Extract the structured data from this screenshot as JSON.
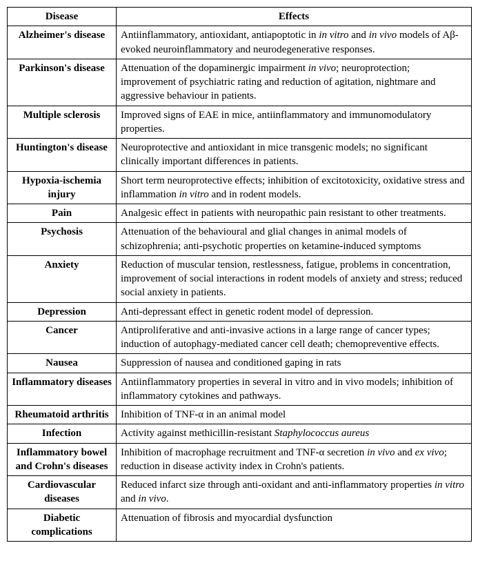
{
  "headers": {
    "disease": "Disease",
    "effects": "Effects"
  },
  "rows": [
    {
      "disease": "Alzheimer's disease",
      "effects_html": "Antiinflammatory, antioxidant, antiapoptotic in <span class=\"ital\">in vitro</span> and <span class=\"ital\">in vivo</span> models of Aβ-evoked neuroinflammatory and neurodegenerative responses."
    },
    {
      "disease": "Parkinson's disease",
      "effects_html": "Attenuation of the dopaminergic impairment <span class=\"ital\">in vivo</span>; neuroprotection; improvement of psychiatric rating and reduction of agitation, nightmare and aggressive behaviour in patients."
    },
    {
      "disease": "Multiple sclerosis",
      "effects_html": "Improved signs of EAE in mice, antiinflammatory and immunomodulatory properties."
    },
    {
      "disease": "Huntington's disease",
      "effects_html": "Neuroprotective and antioxidant in mice transgenic models; no significant clinically important differences in patients."
    },
    {
      "disease": "Hypoxia-ischemia injury",
      "effects_html": "Short term neuroprotective effects; inhibition of excitotoxicity, oxidative stress and inflammation <span class=\"ital\">in vitro</span> and in rodent models."
    },
    {
      "disease": "Pain",
      "effects_html": "Analgesic effect in patients with neuropathic pain resistant to other treatments."
    },
    {
      "disease": "Psychosis",
      "effects_html": "Attenuation of the behavioural and glial changes in animal models of schizophrenia; anti-psychotic properties on ketamine-induced symptoms"
    },
    {
      "disease": "Anxiety",
      "effects_html": "Reduction of muscular tension, restlessness, fatigue, problems in concentration, improvement of social interactions in rodent models of anxiety and stress; reduced social anxiety in patients."
    },
    {
      "disease": "Depression",
      "effects_html": "Anti-depressant effect in genetic rodent model of depression."
    },
    {
      "disease": "Cancer",
      "effects_html": "Antiproliferative and anti-invasive actions in a large range of cancer types; induction of autophagy-mediated cancer cell death; chemopreventive effects."
    },
    {
      "disease": "Nausea",
      "effects_html": "Suppression of nausea and conditioned gaping in rats"
    },
    {
      "disease": "Inflammatory diseases",
      "effects_html": "Antiinflammatory properties in several in vitro and in vivo models; inhibition of inflammatory cytokines and pathways."
    },
    {
      "disease": "Rheumatoid arthritis",
      "effects_html": "Inhibition of TNF-α in an animal model"
    },
    {
      "disease": "Infection",
      "effects_html": "Activity against methicillin-resistant <span class=\"ital\">Staphylococcus aureus</span>"
    },
    {
      "disease": "Inflammatory bowel and Crohn's diseases",
      "effects_html": "Inhibition of macrophage recruitment and TNF-α secretion <span class=\"ital\">in vivo</span> and <span class=\"ital\">ex vivo</span>; reduction in disease activity index in Crohn's patients."
    },
    {
      "disease": "Cardiovascular diseases",
      "effects_html": "Reduced infarct size through anti-oxidant and anti-inflammatory properties <span class=\"ital\">in vitro</span> and <span class=\"ital\">in vivo</span>."
    },
    {
      "disease": "Diabetic complications",
      "effects_html": "Attenuation of fibrosis and myocardial dysfunction"
    }
  ]
}
